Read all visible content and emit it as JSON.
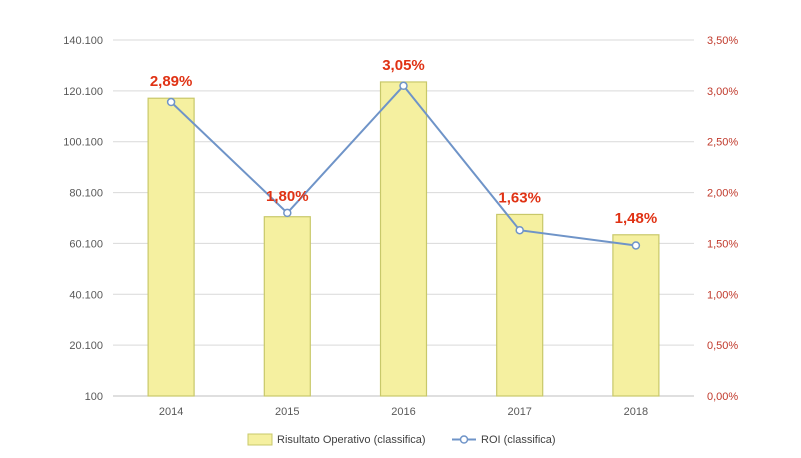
{
  "chart_data": {
    "type": "bar+line",
    "categories": [
      "2014",
      "2015",
      "2016",
      "2017",
      "2018"
    ],
    "series": [
      {
        "name": "Risultato Operativo (classifica)",
        "type": "bar",
        "axis": "left",
        "values": [
          117200,
          70600,
          123600,
          71500,
          63500
        ],
        "color": "#f5f0a0",
        "border": "#c8c86a"
      },
      {
        "name": "ROI (classifica)",
        "type": "line",
        "axis": "right",
        "values": [
          2.89,
          1.8,
          3.05,
          1.63,
          1.48
        ],
        "labels": [
          "2,89%",
          "1,80%",
          "3,05%",
          "1,63%",
          "1,48%"
        ],
        "color": "#6f94c8"
      }
    ],
    "y_left": {
      "min": 100,
      "max": 140100,
      "ticks": [
        100,
        20100,
        40100,
        60100,
        80100,
        100100,
        120100,
        140100
      ],
      "tick_labels": [
        "100",
        "20.100",
        "40.100",
        "60.100",
        "80.100",
        "100.100",
        "120.100",
        "140.100"
      ]
    },
    "y_right": {
      "min": 0,
      "max": 3.5,
      "ticks": [
        0,
        0.5,
        1.0,
        1.5,
        2.0,
        2.5,
        3.0,
        3.5
      ],
      "tick_labels": [
        "0,00%",
        "0,50%",
        "1,00%",
        "1,50%",
        "2,00%",
        "2,50%",
        "3,00%",
        "3,50%"
      ],
      "color": "#c0392b"
    },
    "label_color": "#e03214",
    "grid": true,
    "legend": "bottom-center"
  }
}
